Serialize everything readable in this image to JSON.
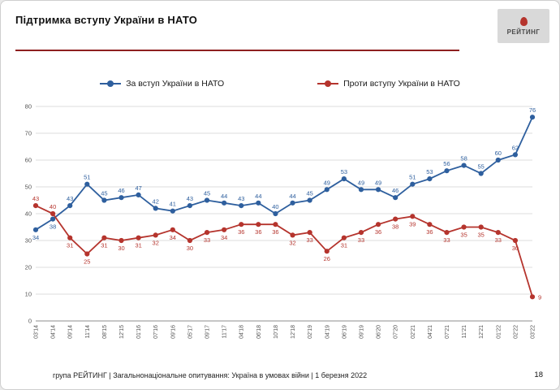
{
  "header": {
    "title": "Підтримка вступу України в НАТО",
    "logo_text": "РЕЙТИНГ"
  },
  "chart_data": {
    "type": "line",
    "title": "Підтримка вступу України в НАТО",
    "xlabel": "",
    "ylabel": "",
    "ylim": [
      0,
      80
    ],
    "yticks": [
      0,
      10,
      20,
      30,
      40,
      50,
      60,
      70,
      80
    ],
    "grid": true,
    "legend_position": "top",
    "x": [
      "03'14",
      "04'14",
      "09'14",
      "11'14",
      "08'15",
      "12'15",
      "01'16",
      "07'16",
      "09'16",
      "05'17",
      "09'17",
      "11'17",
      "04'18",
      "06'18",
      "10'18",
      "12'18",
      "02'19",
      "04'19",
      "06'19",
      "09'19",
      "06'20",
      "07'20",
      "02'21",
      "04'21",
      "07'21",
      "11'21",
      "12'21",
      "01'22",
      "02'22",
      "03'22"
    ],
    "series": [
      {
        "name": "За вступ України в НАТО",
        "color": "#2e5f9e",
        "values": [
          34,
          38,
          43,
          51,
          45,
          46,
          47,
          42,
          41,
          43,
          45,
          44,
          43,
          44,
          40,
          44,
          45,
          49,
          53,
          49,
          49,
          46,
          51,
          53,
          56,
          58,
          55,
          60,
          62,
          76
        ]
      },
      {
        "name": "Проти вступу України в НАТО",
        "color": "#b5342d",
        "values": [
          43,
          40,
          31,
          25,
          31,
          30,
          31,
          32,
          34,
          30,
          33,
          34,
          36,
          36,
          36,
          32,
          33,
          26,
          31,
          33,
          36,
          38,
          39,
          36,
          33,
          35,
          35,
          33,
          30,
          9
        ]
      }
    ]
  },
  "footer": {
    "text": "група РЕЙТИНГ | Загальнонаціональне опитування: Україна в умовах війни | 1 березня 2022",
    "page_number": "18"
  }
}
